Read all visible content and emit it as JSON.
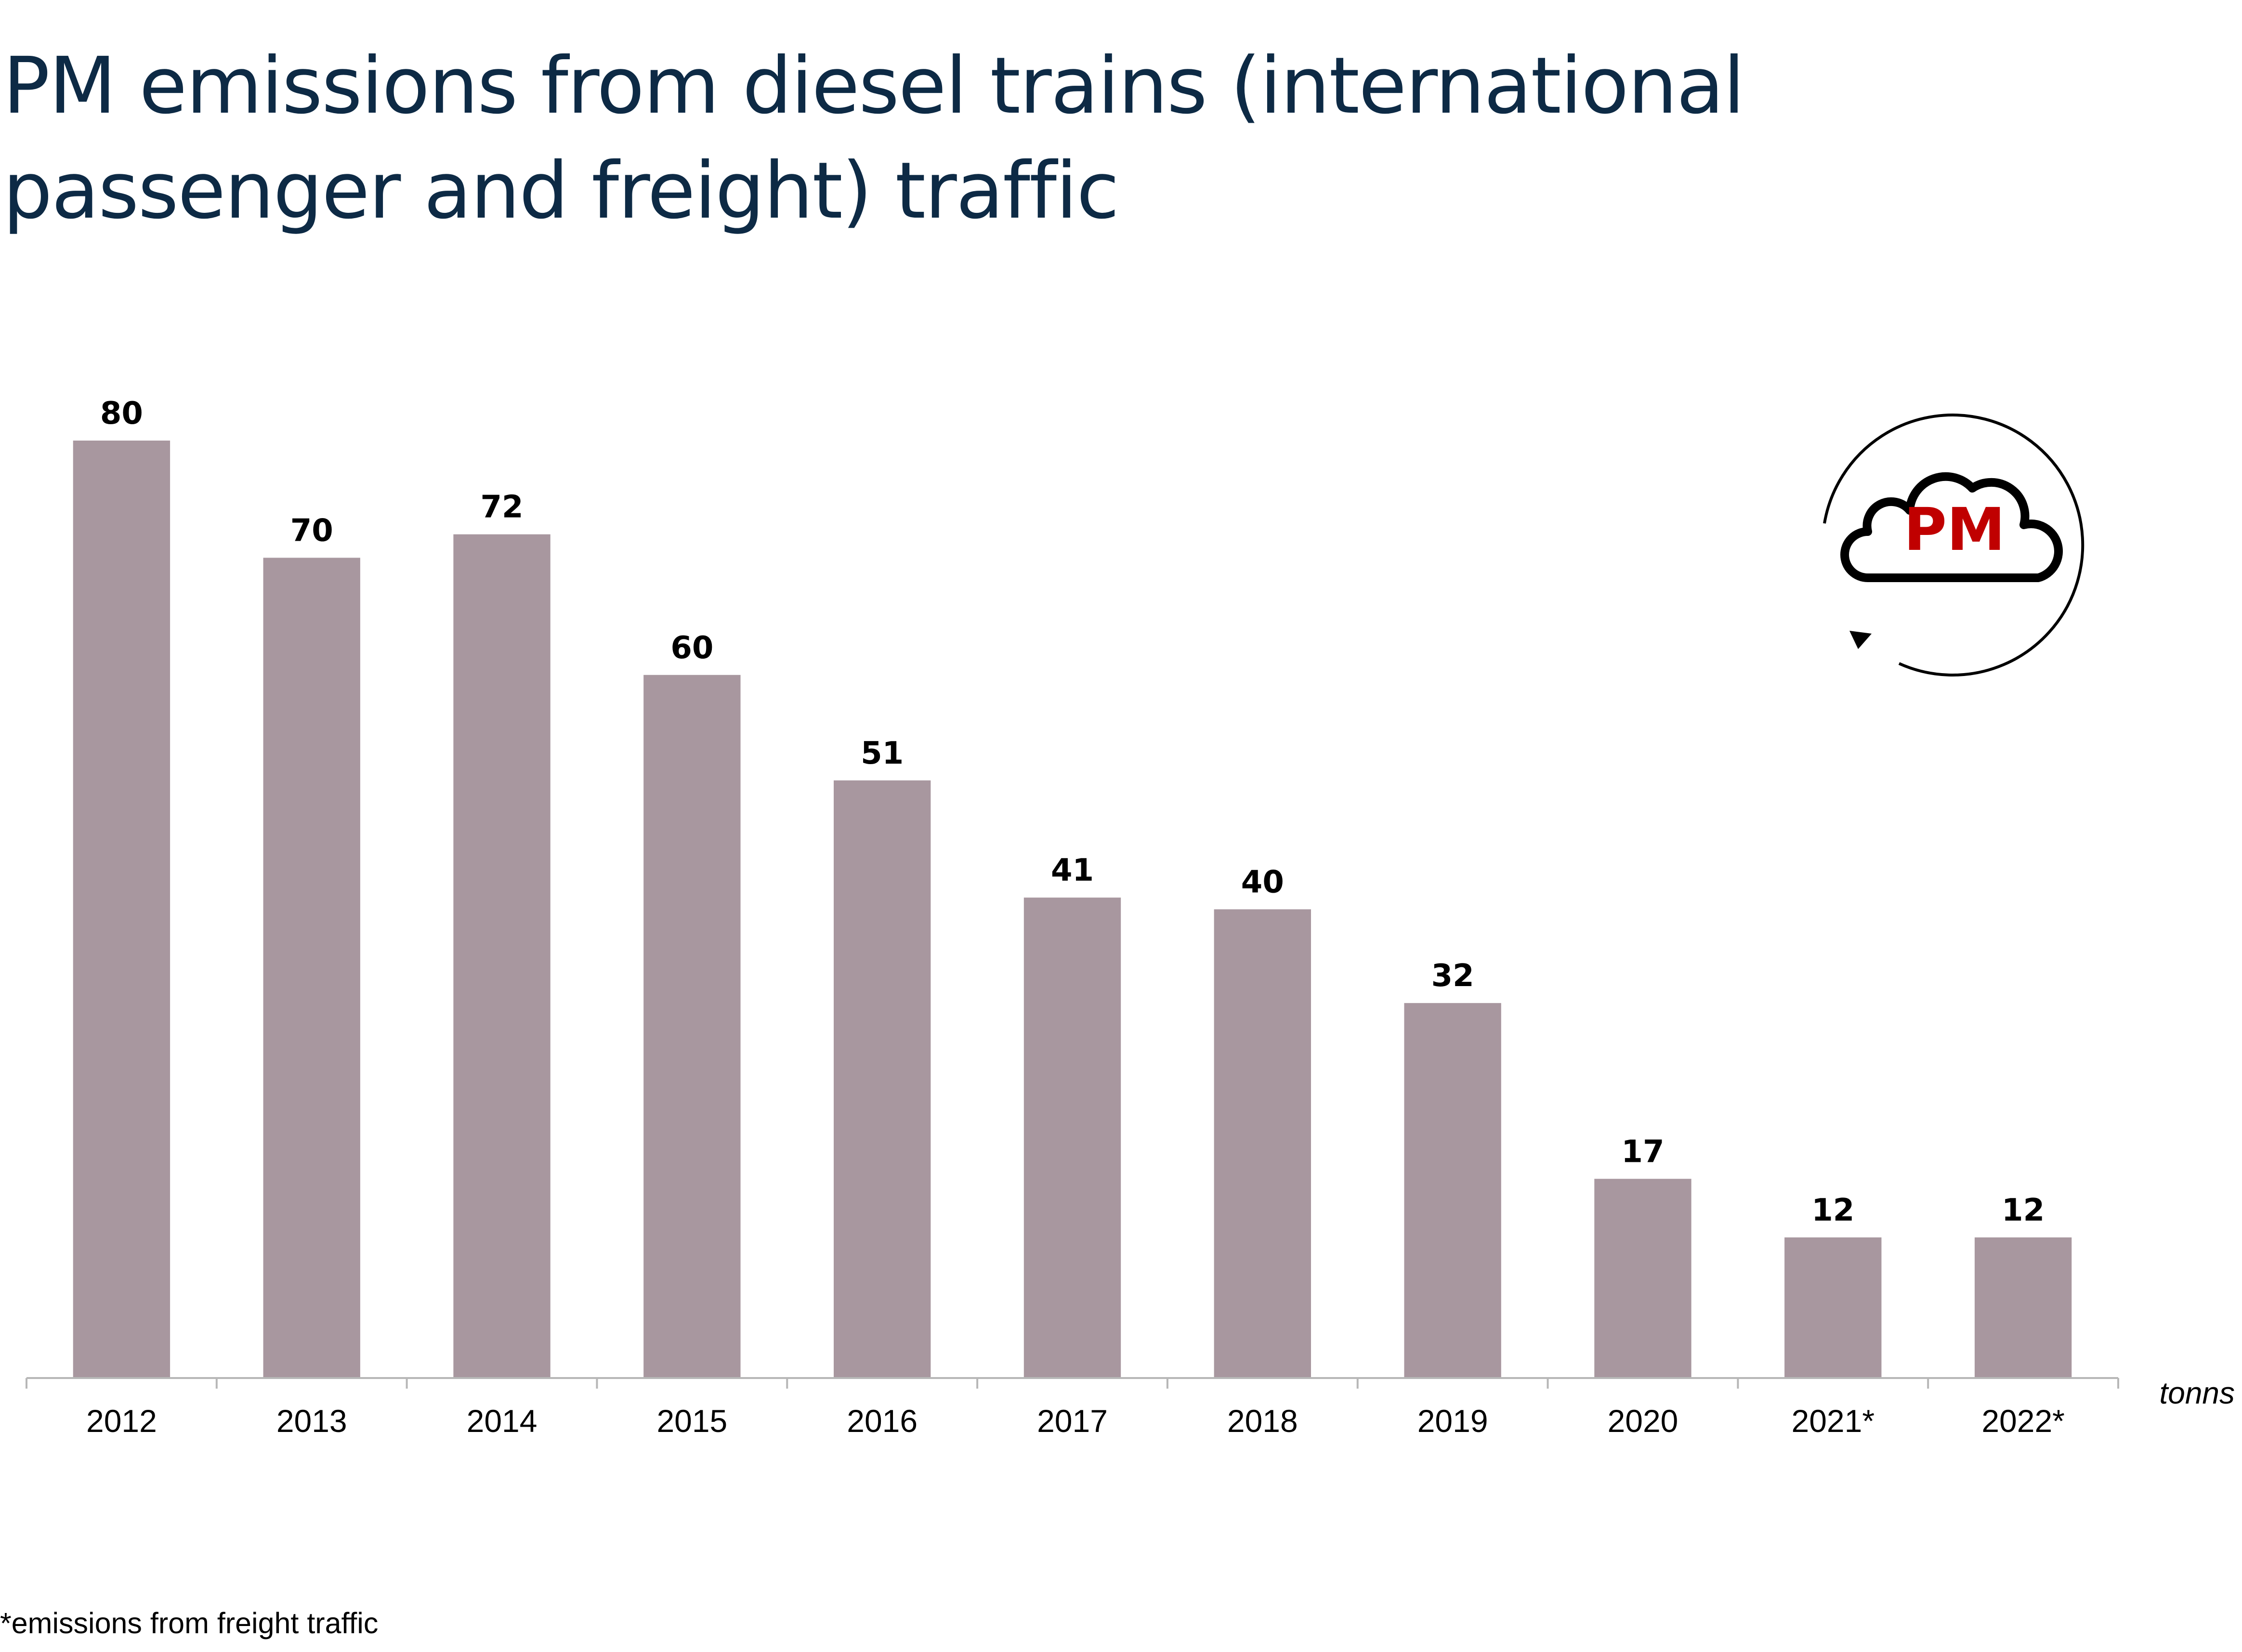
{
  "chart_data": {
    "type": "bar",
    "title": "PM emissions from diesel trains (international passenger and freight) traffic",
    "categories": [
      "2012",
      "2013",
      "2014",
      "2015",
      "2016",
      "2017",
      "2018",
      "2019",
      "2020",
      "2021*",
      "2022*"
    ],
    "values": [
      80,
      70,
      72,
      60,
      51,
      41,
      40,
      32,
      17,
      12,
      12
    ],
    "unit_label": "tonns",
    "ylim": [
      0,
      80
    ],
    "grid": false,
    "data_labels": true,
    "footnote": "*emissions from freight traffic",
    "colors": {
      "bar": "#A8979F",
      "axis": "#B7B7B7",
      "title": "#0D2A45",
      "logo_text": "#C00000"
    }
  },
  "logo": {
    "text": "PM",
    "icon": "cloud-cycle-icon"
  }
}
